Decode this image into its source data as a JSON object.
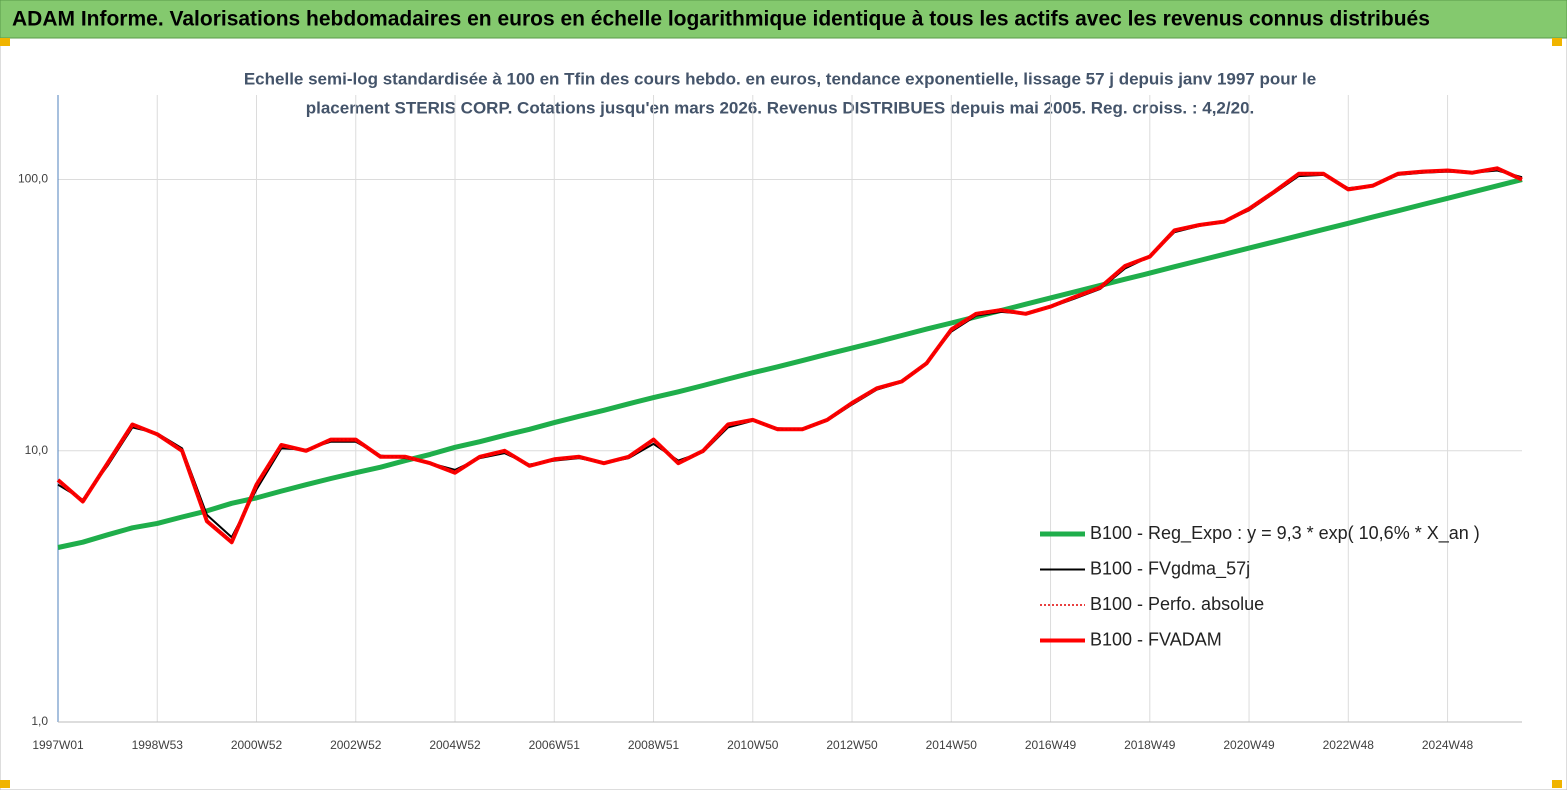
{
  "chart_data": {
    "type": "line",
    "header": "ADAM Informe. Valorisations hebdomadaires en euros en échelle logarithmique identique à tous les actifs avec les revenus connus distribués",
    "title": [
      "Echelle semi-log standardisée à 100 en Tfin des cours hebdo. en euros, tendance exponentielle, lissage 57 j depuis janv 1997 pour le",
      "placement STERIS CORP. Cotations jusqu'en mars 2026. Revenus DISTRIBUES depuis mai 2005. Reg. croiss. : 4,2/20."
    ],
    "log_scale": true,
    "grid": true,
    "legend": "right",
    "ylim": [
      1,
      205
    ],
    "yticks": [
      {
        "value": 1,
        "label": "1,0"
      },
      {
        "value": 10,
        "label": "10,0"
      },
      {
        "value": 100,
        "label": "100,0"
      }
    ],
    "categories": [
      "1997W01",
      null,
      null,
      null,
      "1998W53",
      null,
      null,
      null,
      "2000W52",
      null,
      null,
      null,
      "2002W52",
      null,
      null,
      null,
      "2004W52",
      null,
      null,
      null,
      "2006W51",
      null,
      null,
      null,
      "2008W51",
      null,
      null,
      null,
      "2010W50",
      null,
      null,
      null,
      "2012W50",
      null,
      null,
      null,
      "2014W50",
      null,
      null,
      null,
      "2016W49",
      null,
      null,
      null,
      "2018W49",
      null,
      null,
      null,
      "2020W49",
      null,
      null,
      null,
      "2022W48",
      null,
      null,
      null,
      "2024W48",
      null,
      null,
      null
    ],
    "series": [
      {
        "name": "B100 - Reg_Expo : y = 9,3 * exp( 10,6% *  X_an )",
        "color": "#1fae4b",
        "values": [
          4.4,
          4.6,
          4.9,
          5.2,
          5.4,
          5.7,
          6.0,
          6.4,
          6.7,
          7.1,
          7.5,
          7.9,
          8.3,
          8.7,
          9.2,
          9.7,
          10.3,
          10.8,
          11.4,
          12.0,
          12.7,
          13.4,
          14.1,
          14.9,
          15.7,
          16.5,
          17.4,
          18.4,
          19.4,
          20.4,
          21.5,
          22.7,
          23.9,
          25.2,
          26.6,
          28.1,
          29.6,
          31.2,
          32.9,
          34.7,
          36.6,
          38.6,
          40.7,
          42.9,
          45.2,
          47.7,
          50.3,
          53.0,
          55.9,
          58.9,
          62.1,
          65.5,
          69.0,
          72.8,
          76.7,
          80.9,
          85.3,
          89.9,
          94.8,
          100
        ]
      },
      {
        "name": "B100 - FVgdma_57j",
        "color": "#000000",
        "values": [
          7.5,
          6.6,
          8.8,
          12.2,
          11.6,
          10.2,
          5.8,
          4.8,
          7.2,
          10.2,
          10.1,
          10.8,
          10.8,
          9.6,
          9.4,
          9.0,
          8.5,
          9.4,
          9.8,
          8.9,
          9.2,
          9.4,
          9.0,
          9.4,
          10.6,
          9.2,
          9.9,
          12.2,
          12.9,
          12.1,
          12.0,
          12.9,
          14.8,
          16.8,
          17.9,
          21.0,
          27.5,
          31.5,
          32.5,
          32.0,
          33.8,
          36.5,
          39.5,
          47,
          52,
          64,
          67.5,
          70,
          77,
          89,
          103,
          104,
          93,
          95,
          104,
          106,
          107,
          106,
          108,
          102
        ]
      },
      {
        "name": "B100 - Perfo. absolue",
        "color": "#e00000",
        "dash": true,
        "values": [
          7.8,
          6.5,
          9.0,
          12.5,
          11.5,
          10.0,
          5.5,
          4.6,
          7.5,
          10.5,
          10.0,
          11.0,
          11.0,
          9.5,
          9.5,
          9.0,
          8.3,
          9.5,
          10.0,
          8.8,
          9.3,
          9.5,
          9.0,
          9.5,
          11.0,
          9.0,
          10.0,
          12.5,
          13.0,
          12.0,
          12.0,
          13.0,
          15.0,
          17.0,
          18.0,
          21.0,
          28,
          32,
          33,
          32,
          34,
          37,
          40,
          48,
          52,
          65,
          68,
          70,
          78,
          90,
          105,
          105,
          92,
          95,
          105,
          107,
          108,
          106,
          110,
          100
        ]
      },
      {
        "name": "B100 - FVADAM",
        "color": "#ff0000",
        "values": [
          7.8,
          6.5,
          9.0,
          12.5,
          11.5,
          10.0,
          5.5,
          4.6,
          7.5,
          10.5,
          10.0,
          11.0,
          11.0,
          9.5,
          9.5,
          9.0,
          8.3,
          9.5,
          10.0,
          8.8,
          9.3,
          9.5,
          9.0,
          9.5,
          11.0,
          9.0,
          10.0,
          12.5,
          13.0,
          12.0,
          12.0,
          13.0,
          15.0,
          17.0,
          18.0,
          21.0,
          28,
          32,
          33,
          32,
          34,
          37,
          40,
          48,
          52,
          65,
          68,
          70,
          78,
          90,
          105,
          105,
          92,
          95,
          105,
          107,
          108,
          106,
          110,
          100
        ]
      }
    ]
  }
}
